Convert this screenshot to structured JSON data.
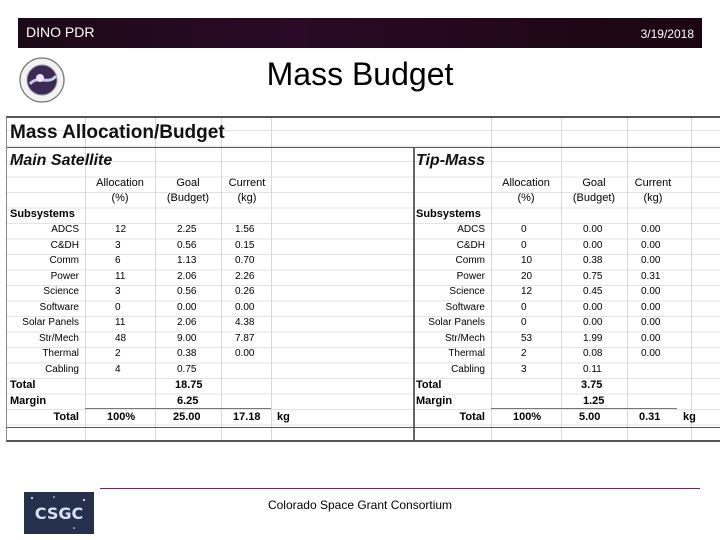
{
  "header": {
    "left_label": "DINO PDR",
    "date": "3/19/2018"
  },
  "title": "Mass Budget",
  "sheet": {
    "title": "Mass Allocation/Budget",
    "sections": [
      {
        "name": "Main Satellite",
        "col_headers": {
          "allocation": [
            "Allocation",
            "(%)"
          ],
          "goal": [
            "Goal",
            "(Budget)"
          ],
          "current": [
            "Current",
            "(kg)"
          ]
        },
        "group_label": "Subsystems",
        "rows": [
          {
            "label": "ADCS",
            "alloc": "12",
            "goal": "2.25",
            "current": "1.56"
          },
          {
            "label": "C&DH",
            "alloc": "3",
            "goal": "0.56",
            "current": "0.15"
          },
          {
            "label": "Comm",
            "alloc": "6",
            "goal": "1.13",
            "current": "0.70"
          },
          {
            "label": "Power",
            "alloc": "11",
            "goal": "2.06",
            "current": "2.26"
          },
          {
            "label": "Science",
            "alloc": "3",
            "goal": "0.56",
            "current": "0.26"
          },
          {
            "label": "Software",
            "alloc": "0",
            "goal": "0.00",
            "current": "0.00"
          },
          {
            "label": "Solar Panels",
            "alloc": "11",
            "goal": "2.06",
            "current": "4.38"
          },
          {
            "label": "Str/Mech",
            "alloc": "48",
            "goal": "9.00",
            "current": "7.87"
          },
          {
            "label": "Thermal",
            "alloc": "2",
            "goal": "0.38",
            "current": "0.00"
          },
          {
            "label": "Cabling",
            "alloc": "4",
            "goal": "0.75",
            "current": ""
          }
        ],
        "total_label": "Total",
        "total_goal": "18.75",
        "margin_label": "Margin",
        "margin_goal": "6.25",
        "grand_label": "Total",
        "grand_alloc": "100%",
        "grand_goal": "25.00",
        "grand_current": "17.18",
        "unit": "kg"
      },
      {
        "name": "Tip-Mass",
        "col_headers": {
          "allocation": [
            "Allocation",
            "(%)"
          ],
          "goal": [
            "Goal",
            "(Budget)"
          ],
          "current": [
            "Current",
            "(kg)"
          ]
        },
        "group_label": "Subsystems",
        "rows": [
          {
            "label": "ADCS",
            "alloc": "0",
            "goal": "0.00",
            "current": "0.00"
          },
          {
            "label": "C&DH",
            "alloc": "0",
            "goal": "0.00",
            "current": "0.00"
          },
          {
            "label": "Comm",
            "alloc": "10",
            "goal": "0.38",
            "current": "0.00"
          },
          {
            "label": "Power",
            "alloc": "20",
            "goal": "0.75",
            "current": "0.31"
          },
          {
            "label": "Science",
            "alloc": "12",
            "goal": "0.45",
            "current": "0.00"
          },
          {
            "label": "Software",
            "alloc": "0",
            "goal": "0.00",
            "current": "0.00"
          },
          {
            "label": "Solar Panels",
            "alloc": "0",
            "goal": "0.00",
            "current": "0.00"
          },
          {
            "label": "Str/Mech",
            "alloc": "53",
            "goal": "1.99",
            "current": "0.00"
          },
          {
            "label": "Thermal",
            "alloc": "2",
            "goal": "0.08",
            "current": "0.00"
          },
          {
            "label": "Cabling",
            "alloc": "3",
            "goal": "0.11",
            "current": ""
          }
        ],
        "total_label": "Total",
        "total_goal": "3.75",
        "margin_label": "Margin",
        "margin_goal": "1.25",
        "grand_label": "Total",
        "grand_alloc": "100%",
        "grand_goal": "5.00",
        "grand_current": "0.31",
        "unit": "kg"
      }
    ]
  },
  "footer": {
    "logo_text": "CSGC",
    "org": "Colorado Space Grant Consortium"
  }
}
